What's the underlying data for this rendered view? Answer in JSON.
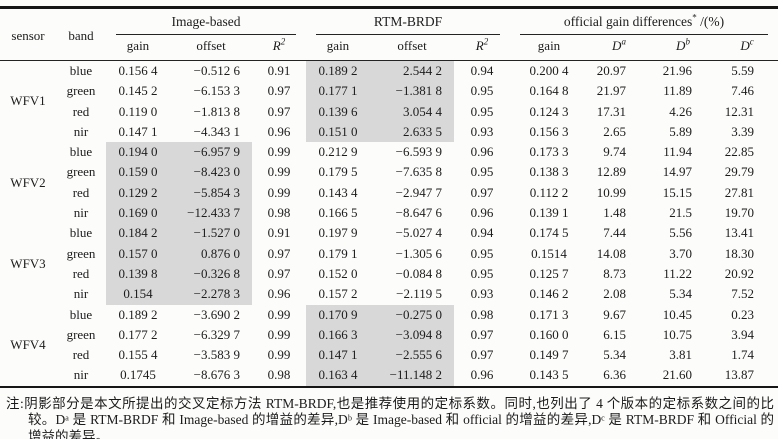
{
  "meta": {
    "shade_color": "#d8d8d8",
    "highlight_meaning": "recommended calibration coefficients (RTM-BRDF cross-calibration proposed in this paper)"
  },
  "header": {
    "sensor": "sensor",
    "band": "band",
    "group_ib": "Image-based",
    "group_rtm": "RTM-BRDF",
    "group_off": "official gain differences",
    "group_off_sup": "*",
    "group_off_unit": " /(%)",
    "col_gain": "gain",
    "col_offset": "offset",
    "col_r": "R",
    "col_r_sup": "2",
    "col_d": "D",
    "sup_a": "a",
    "sup_b": "b",
    "sup_c": "c"
  },
  "body": [
    {
      "sensor": "WFV1",
      "highlight": "rtm",
      "rows": [
        {
          "band": "blue",
          "ib": [
            "0.156 4",
            "−0.512 6",
            "0.91"
          ],
          "rtm": [
            "0.189 2",
            "2.544 2",
            "0.94"
          ],
          "off": [
            "0.200 4",
            "20.97",
            "21.96",
            "5.59"
          ]
        },
        {
          "band": "green",
          "ib": [
            "0.145 2",
            "−6.153 3",
            "0.97"
          ],
          "rtm": [
            "0.177 1",
            "−1.381 8",
            "0.95"
          ],
          "off": [
            "0.164 8",
            "21.97",
            "11.89",
            "7.46"
          ]
        },
        {
          "band": "red",
          "ib": [
            "0.119 0",
            "−1.813 8",
            "0.97"
          ],
          "rtm": [
            "0.139 6",
            "3.054 4",
            "0.95"
          ],
          "off": [
            "0.124 3",
            "17.31",
            "4.26",
            "12.31"
          ]
        },
        {
          "band": "nir",
          "ib": [
            "0.147 1",
            "−4.343 1",
            "0.96"
          ],
          "rtm": [
            "0.151 0",
            "2.633 5",
            "0.93"
          ],
          "off": [
            "0.156 3",
            "2.65",
            "5.89",
            "3.39"
          ]
        }
      ]
    },
    {
      "sensor": "WFV2",
      "highlight": "ib",
      "rows": [
        {
          "band": "blue",
          "ib": [
            "0.194 0",
            "−6.957 9",
            "0.99"
          ],
          "rtm": [
            "0.212 9",
            "−6.593 9",
            "0.96"
          ],
          "off": [
            "0.173 3",
            "9.74",
            "11.94",
            "22.85"
          ]
        },
        {
          "band": "green",
          "ib": [
            "0.159 0",
            "−8.423 0",
            "0.99"
          ],
          "rtm": [
            "0.179 5",
            "−7.635 8",
            "0.95"
          ],
          "off": [
            "0.138 3",
            "12.89",
            "14.97",
            "29.79"
          ]
        },
        {
          "band": "red",
          "ib": [
            "0.129 2",
            "−5.854 3",
            "0.99"
          ],
          "rtm": [
            "0.143 4",
            "−2.947 7",
            "0.97"
          ],
          "off": [
            "0.112 2",
            "10.99",
            "15.15",
            "27.81"
          ]
        },
        {
          "band": "nir",
          "ib": [
            "0.169 0",
            "−12.433 7",
            "0.98"
          ],
          "rtm": [
            "0.166 5",
            "−8.647 6",
            "0.96"
          ],
          "off": [
            "0.139 1",
            "1.48",
            "21.5",
            "19.70"
          ]
        }
      ]
    },
    {
      "sensor": "WFV3",
      "highlight": "ib",
      "rows": [
        {
          "band": "blue",
          "ib": [
            "0.184 2",
            "−1.527 0",
            "0.91"
          ],
          "rtm": [
            "0.197 9",
            "−5.027 4",
            "0.94"
          ],
          "off": [
            "0.174 5",
            "7.44",
            "5.56",
            "13.41"
          ]
        },
        {
          "band": "green",
          "ib": [
            "0.157 0",
            "0.876 0",
            "0.97"
          ],
          "rtm": [
            "0.179 1",
            "−1.305 6",
            "0.95"
          ],
          "off": [
            "0.1514",
            "14.08",
            "3.70",
            "18.30"
          ]
        },
        {
          "band": "red",
          "ib": [
            "0.139 8",
            "−0.326 8",
            "0.97"
          ],
          "rtm": [
            "0.152 0",
            "−0.084 8",
            "0.95"
          ],
          "off": [
            "0.125 7",
            "8.73",
            "11.22",
            "20.92"
          ]
        },
        {
          "band": "nir",
          "ib": [
            "0.154",
            "−2.278 3",
            "0.96"
          ],
          "rtm": [
            "0.157 2",
            "−2.119 5",
            "0.93"
          ],
          "off": [
            "0.146 2",
            "2.08",
            "5.34",
            "7.52"
          ]
        }
      ]
    },
    {
      "sensor": "WFV4",
      "highlight": "rtm",
      "rows": [
        {
          "band": "blue",
          "ib": [
            "0.189 2",
            "−3.690 2",
            "0.99"
          ],
          "rtm": [
            "0.170 9",
            "−0.275 0",
            "0.98"
          ],
          "off": [
            "0.171 3",
            "9.67",
            "10.45",
            "0.23"
          ]
        },
        {
          "band": "green",
          "ib": [
            "0.177 2",
            "−6.329 7",
            "0.99"
          ],
          "rtm": [
            "0.166 3",
            "−3.094 8",
            "0.97"
          ],
          "off": [
            "0.160 0",
            "6.15",
            "10.75",
            "3.94"
          ]
        },
        {
          "band": "red",
          "ib": [
            "0.155 4",
            "−3.583 9",
            "0.99"
          ],
          "rtm": [
            "0.147 1",
            "−2.555 6",
            "0.97"
          ],
          "off": [
            "0.149 7",
            "5.34",
            "3.81",
            "1.74"
          ]
        },
        {
          "band": "nir",
          "ib": [
            "0.1745",
            "−8.676 3",
            "0.98"
          ],
          "rtm": [
            "0.163 4",
            "−11.148 2",
            "0.96"
          ],
          "off": [
            "0.143 5",
            "6.36",
            "21.60",
            "13.87"
          ]
        }
      ]
    }
  ],
  "footnote": "注:阴影部分是本文所提出的交叉定标方法 RTM-BRDF,也是推荐使用的定标系数。同时,也列出了 4 个版本的定标系数之间的比较。Dᵃ 是 RTM-BRDF 和 Image-based 的增益的差异,Dᵇ 是 Image-based 和 official 的增益的差异,Dᶜ 是 RTM-BRDF 和 Official 的增益的差异。"
}
